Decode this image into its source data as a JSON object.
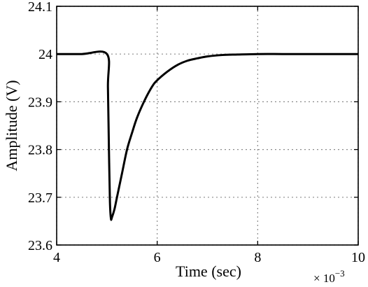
{
  "chart_data": {
    "type": "line",
    "title": "",
    "xlabel": "Time (sec)",
    "ylabel": "Amplitude (V)",
    "x_multiplier_label": "× 10",
    "x_multiplier_exponent": "−3",
    "xlim": [
      4,
      10
    ],
    "ylim": [
      23.6,
      24.1
    ],
    "xticks": [
      4,
      6,
      8,
      10
    ],
    "yticks": [
      23.6,
      23.7,
      23.8,
      23.9,
      24,
      24.1
    ],
    "xtick_labels": [
      "4",
      "6",
      "8",
      "10"
    ],
    "ytick_labels": [
      "23.6",
      "23.7",
      "23.8",
      "23.9",
      "24",
      "24.1"
    ],
    "grid": true,
    "line_color": "#000000",
    "series": [
      {
        "x": [
          4.0,
          4.5,
          5.0,
          5.02,
          5.04,
          5.06,
          5.08,
          5.1,
          5.15,
          5.2,
          5.3,
          5.4,
          5.5,
          5.6,
          5.75,
          5.9,
          6.0,
          6.2,
          6.4,
          6.6,
          6.8,
          7.0,
          7.3,
          7.6,
          8.0,
          8.5,
          9.0,
          10.0
        ],
        "y": [
          24.0,
          24.0,
          24.0,
          23.93,
          23.8,
          23.69,
          23.655,
          23.658,
          23.675,
          23.7,
          23.75,
          23.8,
          23.835,
          23.867,
          23.903,
          23.932,
          23.945,
          23.963,
          23.977,
          23.986,
          23.991,
          23.995,
          23.998,
          23.999,
          24.0,
          24.0,
          24.0,
          24.0
        ]
      }
    ]
  }
}
